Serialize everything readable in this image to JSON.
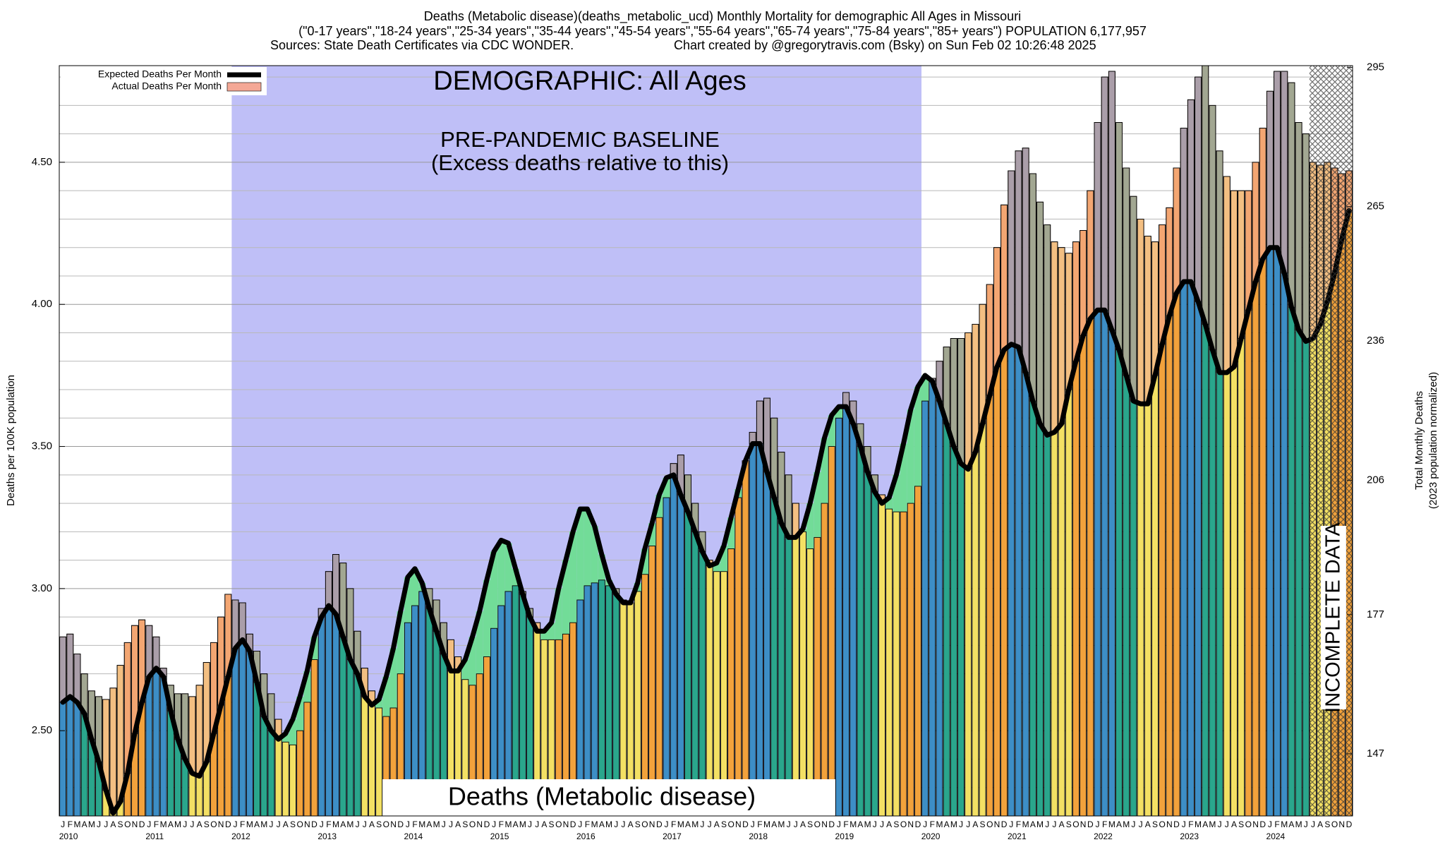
{
  "chart_data": {
    "type": "bar",
    "title": "Deaths (Metabolic disease)(deaths_metabolic_ucd) Monthly Mortality for demographic All Ages in Missouri",
    "subtitle": "(\"0-17 years\",\"18-24 years\",\"25-34 years\",\"35-44 years\",\"45-54 years\",\"55-64 years\",\"65-74 years\",\"75-84 years\",\"85+ years\") POPULATION 6,177,957",
    "sources": "Sources: State Death Certificates via CDC WONDER.",
    "credit": "Chart created by @gregorytravis.com (Bsky) on Sun Feb 02 10:26:48 2025",
    "y_label": "Deaths per 100K population",
    "y2_label": [
      "Total Monthly Deaths",
      "(2023 population normalized)"
    ],
    "annotations": {
      "demographic": "DEMOGRAPHIC: All Ages",
      "baseline": "PRE-PANDEMIC BASELINE",
      "baseline_note": "(Excess deaths relative to this)",
      "cause": "Deaths (Metabolic disease)",
      "incomplete": "INCOMPLETE DATA"
    },
    "month_letters": [
      "J",
      "F",
      "M",
      "A",
      "M",
      "J",
      "J",
      "A",
      "S",
      "O",
      "N",
      "D"
    ],
    "years": [
      2010,
      2011,
      2012,
      2013,
      2014,
      2015,
      2016,
      2017,
      2018,
      2019,
      2020,
      2021,
      2022,
      2023,
      2024
    ],
    "season_colors": [
      "#3d8ec6",
      "#2aa68c",
      "#f3e064",
      "#f2a23c"
    ],
    "deficit_color": "#72dc98",
    "series": [
      {
        "name": "Expected Deaths Per Month",
        "type": "line",
        "color": "#000000",
        "values": [
          2.6,
          2.62,
          2.6,
          2.56,
          2.47,
          2.39,
          2.29,
          2.21,
          2.25,
          2.35,
          2.49,
          2.6,
          2.69,
          2.72,
          2.69,
          2.57,
          2.47,
          2.4,
          2.35,
          2.34,
          2.39,
          2.49,
          2.59,
          2.69,
          2.79,
          2.82,
          2.78,
          2.67,
          2.55,
          2.5,
          2.47,
          2.49,
          2.54,
          2.62,
          2.71,
          2.83,
          2.9,
          2.94,
          2.91,
          2.83,
          2.75,
          2.7,
          2.62,
          2.59,
          2.61,
          2.69,
          2.79,
          2.92,
          3.04,
          3.07,
          3.02,
          2.93,
          2.85,
          2.77,
          2.71,
          2.71,
          2.75,
          2.83,
          2.92,
          3.03,
          3.13,
          3.17,
          3.16,
          3.07,
          2.98,
          2.9,
          2.85,
          2.85,
          2.88,
          3.0,
          3.1,
          3.2,
          3.28,
          3.28,
          3.22,
          3.12,
          3.03,
          2.98,
          2.95,
          2.95,
          3.02,
          3.14,
          3.23,
          3.33,
          3.39,
          3.4,
          3.33,
          3.27,
          3.2,
          3.13,
          3.08,
          3.09,
          3.15,
          3.25,
          3.35,
          3.45,
          3.51,
          3.51,
          3.41,
          3.32,
          3.23,
          3.18,
          3.18,
          3.21,
          3.3,
          3.41,
          3.53,
          3.61,
          3.64,
          3.64,
          3.58,
          3.5,
          3.41,
          3.34,
          3.3,
          3.32,
          3.4,
          3.51,
          3.63,
          3.71,
          3.75,
          3.73,
          3.66,
          3.58,
          3.5,
          3.44,
          3.42,
          3.48,
          3.58,
          3.68,
          3.78,
          3.84,
          3.86,
          3.85,
          3.76,
          3.66,
          3.58,
          3.54,
          3.55,
          3.58,
          3.7,
          3.8,
          3.89,
          3.95,
          3.98,
          3.98,
          3.91,
          3.84,
          3.75,
          3.66,
          3.65,
          3.65,
          3.75,
          3.86,
          3.96,
          4.04,
          4.08,
          4.08,
          4.01,
          3.93,
          3.84,
          3.76,
          3.76,
          3.78,
          3.88,
          3.98,
          4.08,
          4.16,
          4.2,
          4.2,
          4.11,
          3.99,
          3.91,
          3.87,
          3.88,
          3.93,
          4.01,
          4.11,
          4.23,
          4.33
        ]
      },
      {
        "name": "Actual Deaths Per Month",
        "type": "bar",
        "color": "#f4a896",
        "values": [
          2.83,
          2.84,
          2.77,
          2.7,
          2.64,
          2.62,
          2.61,
          2.65,
          2.73,
          2.81,
          2.87,
          2.89,
          2.87,
          2.83,
          2.72,
          2.66,
          2.63,
          2.63,
          2.62,
          2.66,
          2.74,
          2.81,
          2.9,
          2.98,
          2.96,
          2.95,
          2.84,
          2.78,
          2.7,
          2.63,
          2.54,
          2.46,
          2.45,
          2.5,
          2.6,
          2.75,
          2.93,
          3.06,
          3.12,
          3.09,
          3.0,
          2.85,
          2.72,
          2.64,
          2.58,
          2.55,
          2.58,
          2.7,
          2.88,
          2.94,
          2.99,
          3.0,
          2.96,
          2.88,
          2.82,
          2.76,
          2.68,
          2.66,
          2.7,
          2.76,
          2.86,
          2.94,
          2.99,
          3.01,
          2.99,
          2.93,
          2.88,
          2.82,
          2.82,
          2.82,
          2.84,
          2.88,
          2.96,
          3.01,
          3.02,
          3.03,
          3.01,
          3.0,
          2.96,
          2.95,
          2.99,
          3.05,
          3.15,
          3.25,
          3.32,
          3.44,
          3.47,
          3.4,
          3.3,
          3.2,
          3.1,
          3.06,
          3.06,
          3.14,
          3.32,
          3.45,
          3.55,
          3.66,
          3.67,
          3.6,
          3.48,
          3.4,
          3.3,
          3.2,
          3.14,
          3.18,
          3.3,
          3.5,
          3.6,
          3.69,
          3.66,
          3.58,
          3.5,
          3.4,
          3.33,
          3.28,
          3.27,
          3.27,
          3.3,
          3.36,
          3.66,
          3.74,
          3.8,
          3.85,
          3.88,
          3.88,
          3.9,
          3.93,
          4.0,
          4.07,
          4.2,
          4.35,
          4.47,
          4.54,
          4.55,
          4.46,
          4.36,
          4.28,
          4.22,
          4.2,
          4.18,
          4.22,
          4.26,
          4.4,
          4.64,
          4.8,
          4.82,
          4.64,
          4.48,
          4.38,
          4.3,
          4.24,
          4.22,
          4.28,
          4.34,
          4.48,
          4.62,
          4.72,
          4.8,
          4.84,
          4.7,
          4.54,
          4.45,
          4.4,
          4.4,
          4.4,
          4.5,
          4.62,
          4.75,
          4.82,
          4.82,
          4.78,
          4.64,
          4.6,
          4.5,
          4.49,
          4.5,
          4.48,
          4.46,
          4.47
        ]
      }
    ],
    "ylim": [
      2.2,
      4.84
    ],
    "yticks": [
      {
        "value": 2.5,
        "label": "2.50"
      },
      {
        "value": 3.0,
        "label": "3.00"
      },
      {
        "value": 3.5,
        "label": "3.50"
      },
      {
        "value": 4.0,
        "label": "4.00"
      },
      {
        "value": 4.5,
        "label": "4.50"
      }
    ],
    "minor_yticks": [
      2.3,
      2.4,
      2.6,
      2.7,
      2.8,
      2.9,
      3.1,
      3.2,
      3.3,
      3.4,
      3.6,
      3.7,
      3.8,
      3.9,
      4.1,
      4.2,
      4.3,
      4.4,
      4.6,
      4.7,
      4.8
    ],
    "y2lim": [
      133.6,
      295.4
    ],
    "y2ticks": [
      147,
      177,
      206,
      236,
      265,
      295
    ],
    "grid": true,
    "legend": "upper-left"
  }
}
